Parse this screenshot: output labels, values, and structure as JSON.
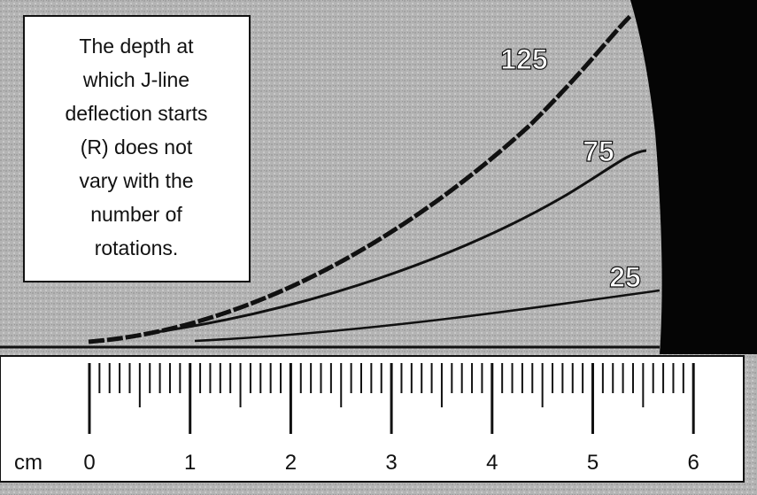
{
  "annotation": {
    "lines": [
      "The depth at",
      "which J-line",
      "deflection starts",
      "(R) does not",
      "vary with the",
      "number of",
      "rotations."
    ]
  },
  "curves": {
    "labels": [
      "125",
      "75",
      "25"
    ]
  },
  "ruler": {
    "unit": "cm",
    "labels": [
      "0",
      "1",
      "2",
      "3",
      "4",
      "5",
      "6"
    ]
  }
}
